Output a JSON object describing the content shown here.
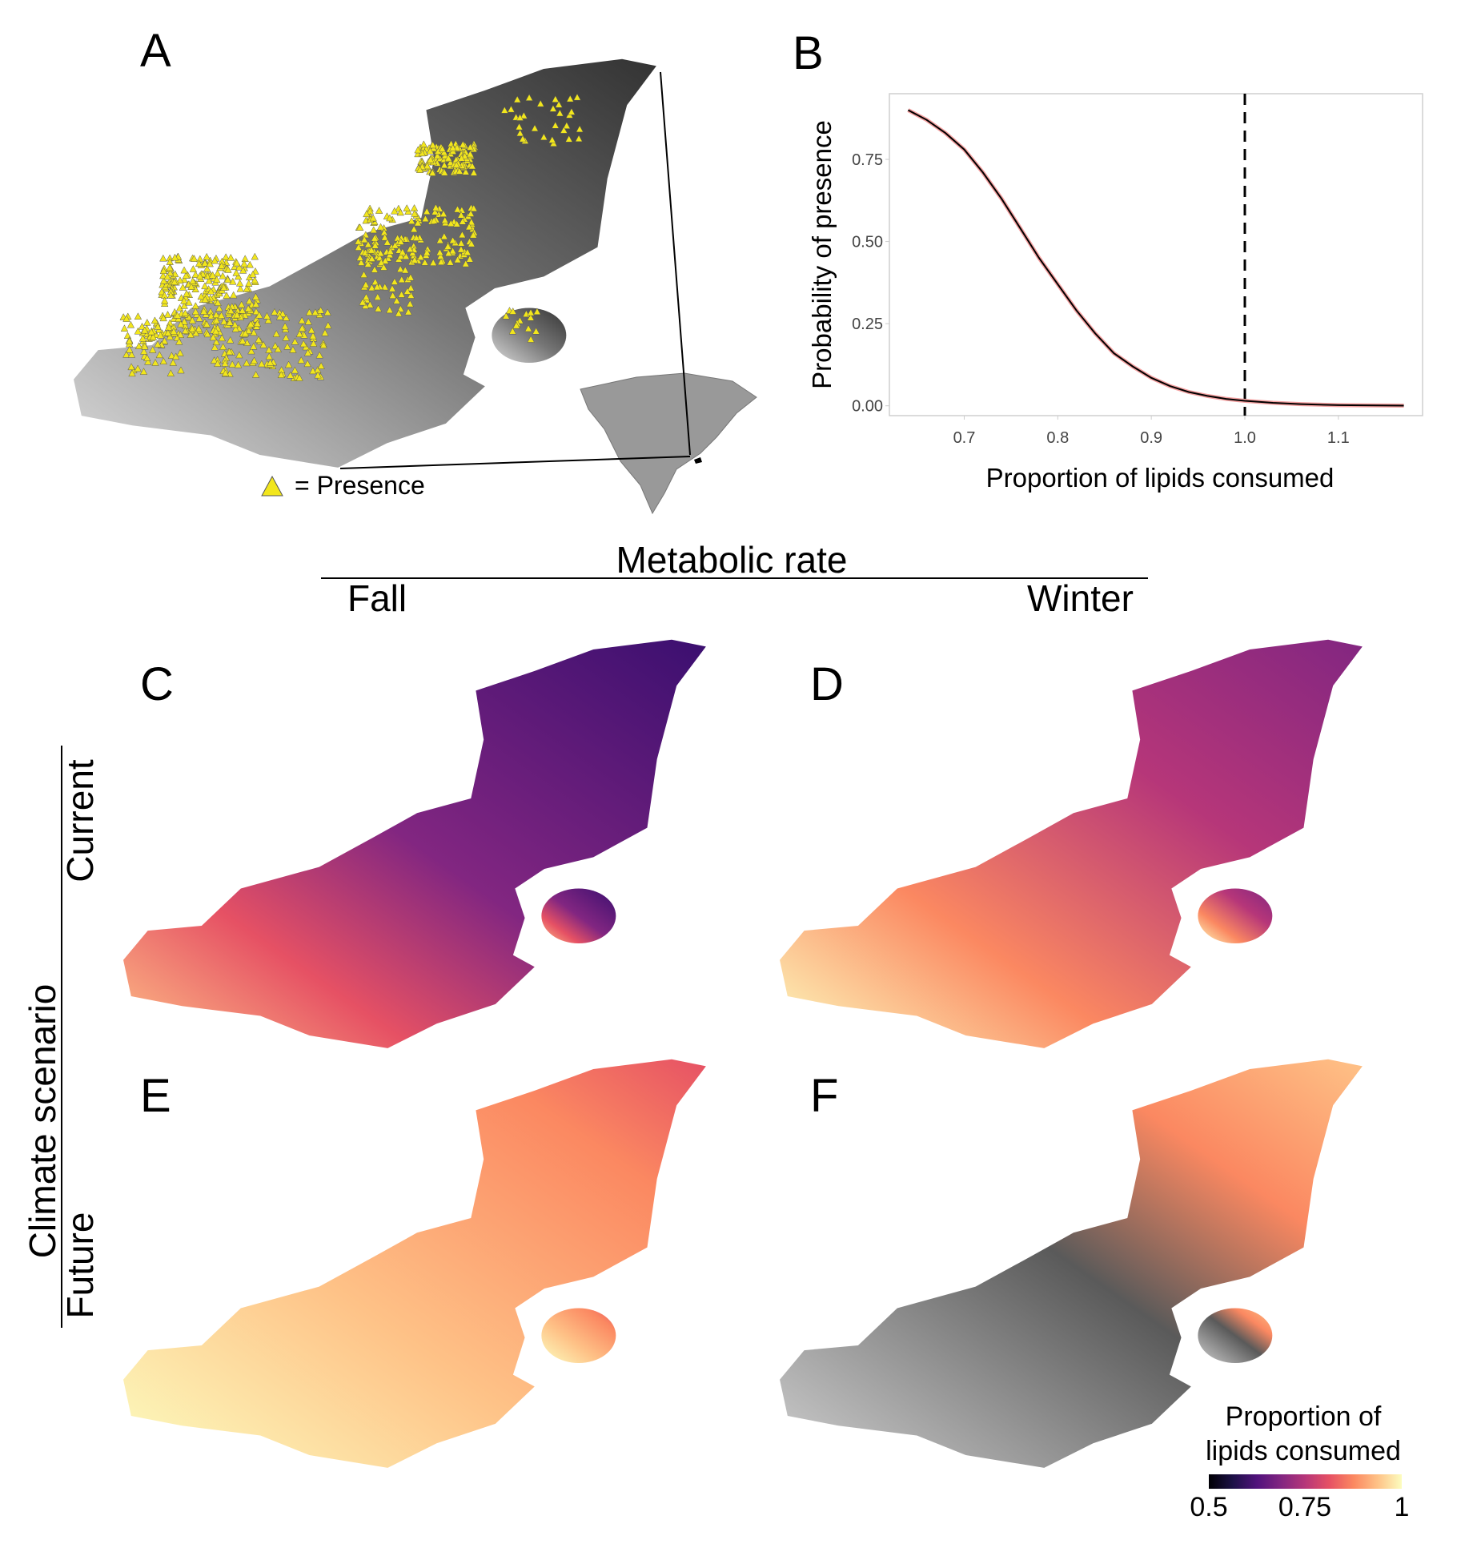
{
  "panels": {
    "a": "A",
    "b": "B",
    "c": "C",
    "d": "D",
    "e": "E",
    "f": "F"
  },
  "panel_a": {
    "legend_label": "= Presence",
    "marker_color": "#f2e61c"
  },
  "header": {
    "title": "Metabolic rate",
    "col_left": "Fall",
    "col_right": "Winter"
  },
  "rows": {
    "title": "Climate scenario",
    "top": "Current",
    "bottom": "Future"
  },
  "colorbar": {
    "title_line1": "Proportion of",
    "title_line2": "lipids consumed",
    "ticks": [
      "0.5",
      "0.75",
      "1"
    ],
    "colors": [
      "#000004",
      "#1d1147",
      "#51127c",
      "#822681",
      "#b63679",
      "#e65164",
      "#fb8861",
      "#fec287",
      "#fcfdbf"
    ]
  },
  "chart_data": {
    "type": "line",
    "xlabel": "Proportion of lipids consumed",
    "ylabel": "Probability of presence",
    "xlim": [
      0.62,
      1.19
    ],
    "ylim": [
      -0.03,
      0.95
    ],
    "xticks": [
      "0.7",
      "0.8",
      "0.9",
      "1.0",
      "1.1"
    ],
    "yticks": [
      "0.00",
      "0.25",
      "0.50",
      "0.75"
    ],
    "grid": false,
    "vline": {
      "x": 1.0,
      "style": "dashed"
    },
    "series": [
      {
        "x": [
          0.64,
          0.66,
          0.68,
          0.7,
          0.72,
          0.74,
          0.76,
          0.78,
          0.8,
          0.82,
          0.84,
          0.86,
          0.88,
          0.9,
          0.92,
          0.94,
          0.96,
          0.98,
          1.0,
          1.03,
          1.06,
          1.1,
          1.14,
          1.17
        ],
        "y": [
          0.9,
          0.87,
          0.83,
          0.78,
          0.71,
          0.63,
          0.54,
          0.45,
          0.37,
          0.29,
          0.22,
          0.16,
          0.12,
          0.085,
          0.06,
          0.042,
          0.03,
          0.021,
          0.015,
          0.009,
          0.005,
          0.002,
          0.001,
          0.0005
        ]
      }
    ]
  }
}
